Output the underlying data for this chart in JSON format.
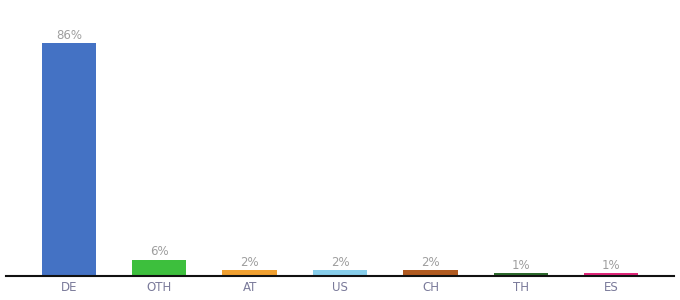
{
  "categories": [
    "DE",
    "OTH",
    "AT",
    "US",
    "CH",
    "TH",
    "ES"
  ],
  "values": [
    86,
    6,
    2,
    2,
    2,
    1,
    1
  ],
  "labels": [
    "86%",
    "6%",
    "2%",
    "2%",
    "2%",
    "1%",
    "1%"
  ],
  "bar_colors": [
    "#4472c4",
    "#3dbf3d",
    "#f0a030",
    "#87ceeb",
    "#b05a20",
    "#2d6a2d",
    "#e0267a"
  ],
  "label_color": "#9e9e9e",
  "background_color": "#ffffff",
  "ylim": [
    0,
    100
  ],
  "label_fontsize": 8.5,
  "tick_fontsize": 8.5,
  "tick_color": "#7a7a9a"
}
